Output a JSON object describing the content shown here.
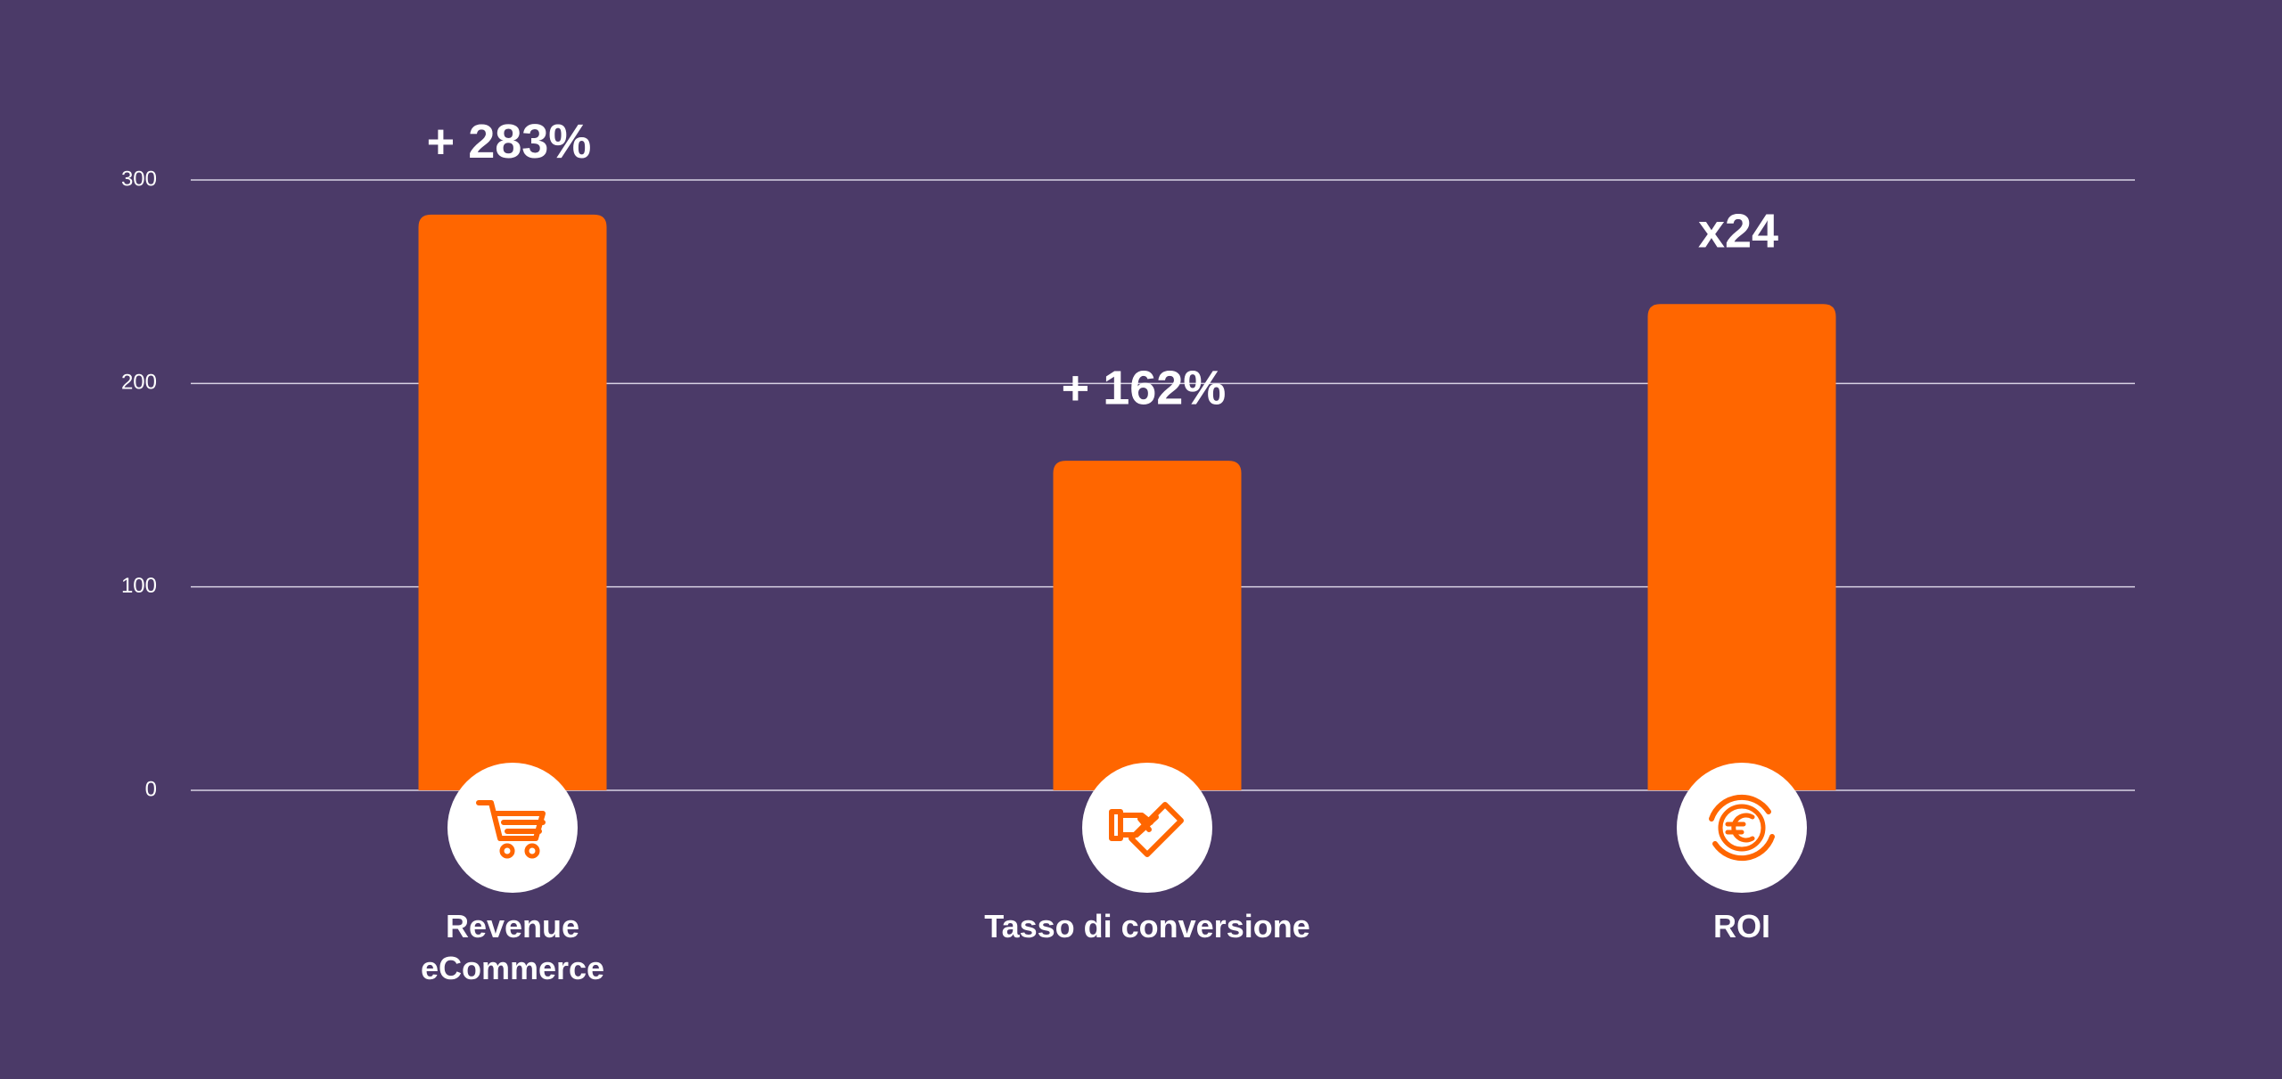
{
  "chart_data": {
    "type": "bar",
    "categories": [
      "Revenue eCommerce",
      "Tasso di conversione",
      "ROI"
    ],
    "values": [
      283,
      162,
      239
    ],
    "value_labels": [
      "+ 283%",
      "+ 162%",
      "x24"
    ],
    "color": "#ff6600",
    "ylim": [
      0,
      300
    ],
    "yticks": [
      0,
      100,
      200,
      300
    ],
    "grid": true
  }
}
